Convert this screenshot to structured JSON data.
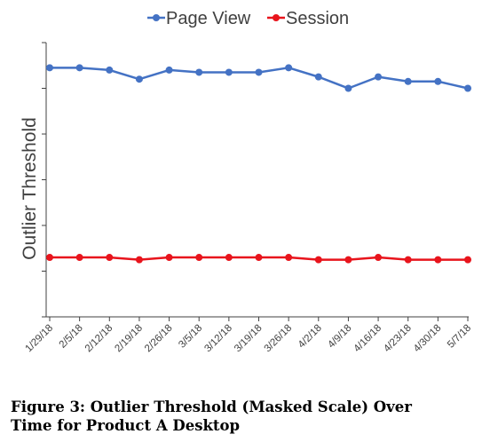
{
  "chart_data": {
    "type": "line",
    "categories": [
      "1/29/18",
      "2/5/18",
      "2/12/18",
      "2/19/18",
      "2/26/18",
      "3/5/18",
      "3/12/18",
      "3/19/18",
      "3/26/18",
      "4/2/18",
      "4/9/18",
      "4/16/18",
      "4/23/18",
      "4/30/18",
      "5/7/18"
    ],
    "series": [
      {
        "name": "Page View",
        "color": "#4472C4",
        "values": [
          5.45,
          5.45,
          5.4,
          5.2,
          5.4,
          5.35,
          5.35,
          5.35,
          5.45,
          5.25,
          5.0,
          5.25,
          5.15,
          5.15,
          5.0
        ]
      },
      {
        "name": "Session",
        "color": "#E8141C",
        "values": [
          1.3,
          1.3,
          1.3,
          1.25,
          1.3,
          1.3,
          1.3,
          1.3,
          1.3,
          1.25,
          1.25,
          1.3,
          1.25,
          1.25,
          1.25
        ]
      }
    ],
    "title": "",
    "xlabel": "",
    "ylabel": "Outlier Threshold",
    "ylim": [
      0,
      6
    ],
    "y_tick_labels_shown": false,
    "grid": false,
    "legend_position": "top"
  },
  "caption": {
    "line1": "Figure 3: Outlier Threshold (Masked Scale) Over",
    "line2": "Time for Product A Desktop"
  }
}
